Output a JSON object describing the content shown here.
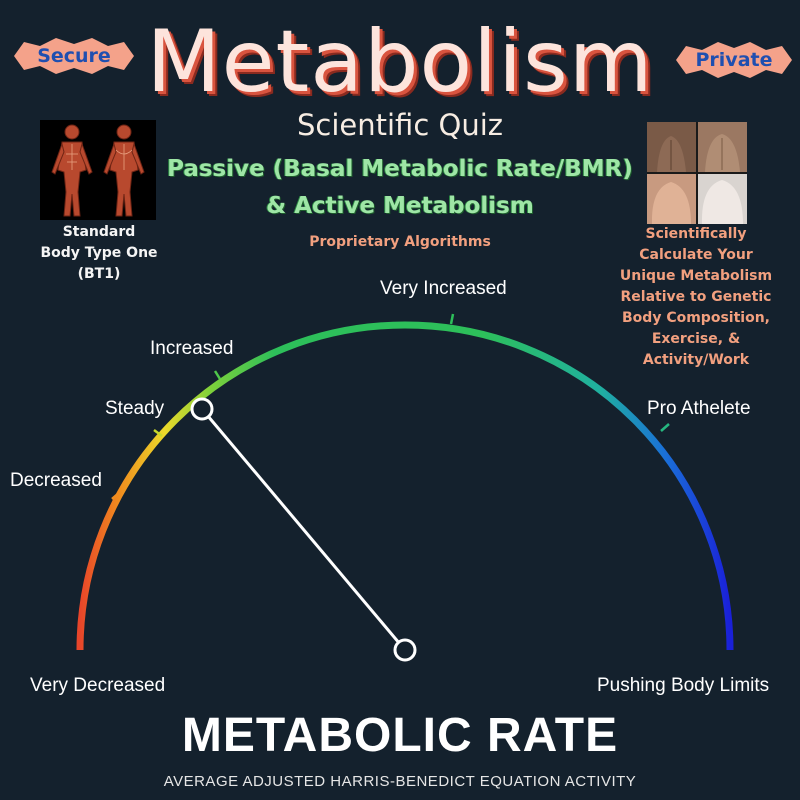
{
  "badges": {
    "left": "Secure",
    "right": "Private"
  },
  "header": {
    "title": "Metabolism",
    "subtitle": "Scientific Quiz",
    "line1": "Passive (Basal Metabolic Rate/BMR)",
    "line2": "& Active Metabolism",
    "tagline": "Proprietary Algorithms"
  },
  "left_panel": {
    "caption_lines": [
      "Standard",
      "Body Type One",
      "(BT1)"
    ]
  },
  "right_panel": {
    "caption_lines": [
      "Scientifically",
      "Calculate Your",
      "Unique Metabolism",
      "Relative to Genetic",
      "Body Composition,",
      "Exercise, &",
      "Activity/Work"
    ]
  },
  "gauge": {
    "labels": {
      "very_decreased": "Very Decreased",
      "decreased": "Decreased",
      "steady": "Steady",
      "increased": "Increased",
      "very_increased": "Very Increased",
      "pro_athlete": "Pro Athelete",
      "pushing_limits": "Pushing Body Limits"
    },
    "needle_level": "Steady",
    "colors": {
      "red": "#e8452a",
      "orange": "#f08c1e",
      "yellow": "#ecd92a",
      "green": "#2dbf5a",
      "blue": "#1a20d8"
    }
  },
  "footer": {
    "title": "METABOLIC RATE",
    "subtitle": "AVERAGE ADJUSTED HARRIS-BENEDICT EQUATION ACTIVITY"
  }
}
